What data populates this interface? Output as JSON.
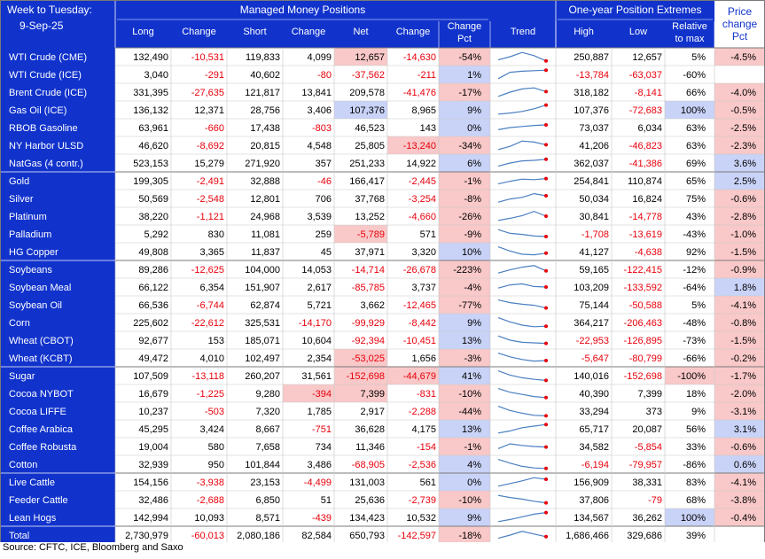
{
  "header": {
    "week_label": "Week to Tuesday:",
    "date": "9-Sep-25",
    "mm_group": "Managed Money Positions",
    "ext_group": "One-year Position Extremes",
    "price_group": [
      "Price",
      "change",
      "Pct"
    ],
    "cols": [
      "Long",
      "Change",
      "Short",
      "Change",
      "Net",
      "Change"
    ],
    "change_pct": [
      "Change",
      "Pct"
    ],
    "trend": "Trend",
    "high": "High",
    "low": "Low",
    "relative": [
      "Relative",
      "to max"
    ]
  },
  "colors": {
    "navy": "#1133cc",
    "red_fill": "#f9c8c8",
    "blue_fill": "#c9d2f7",
    "red_text": "#e8000b",
    "grid": "#c7c7c7",
    "border": "#7a7a7a",
    "sparkline": "#4a7fc1",
    "spark_dot": "#e8000b"
  },
  "rows": [
    {
      "name": "WTI Crude (CME)",
      "long": "132,490",
      "ch1": "-10,531",
      "short": "119,833",
      "ch2": "4,099",
      "net": "12,657",
      "ch3": "-14,630",
      "pct": "-54%",
      "high": "250,887",
      "low": "12,657",
      "rel": "5%",
      "price": "-4.5%",
      "fill": {
        "net": "r",
        "pct": "r",
        "price": "r"
      },
      "trend": [
        0.2,
        0.5,
        0.9,
        0.6,
        0.1
      ]
    },
    {
      "name": "WTI Crude (ICE)",
      "long": "3,040",
      "ch1": "-291",
      "short": "40,602",
      "ch2": "-80",
      "net": "-37,562",
      "ch3": "-211",
      "pct": "1%",
      "high": "-13,784",
      "low": "-63,037",
      "rel": "-60%",
      "price": "",
      "fill": {
        "pct": "b"
      },
      "trend": [
        0.1,
        0.7,
        0.8,
        0.85,
        0.9
      ]
    },
    {
      "name": "Brent Crude (ICE)",
      "long": "331,395",
      "ch1": "-27,635",
      "short": "121,817",
      "ch2": "13,841",
      "net": "209,578",
      "ch3": "-41,476",
      "pct": "-17%",
      "high": "318,182",
      "low": "-8,141",
      "rel": "66%",
      "price": "-4.0%",
      "fill": {
        "pct": "r",
        "price": "r"
      },
      "trend": [
        0.1,
        0.5,
        0.8,
        0.9,
        0.55
      ]
    },
    {
      "name": "Gas Oil (ICE)",
      "long": "136,132",
      "ch1": "12,371",
      "short": "28,756",
      "ch2": "3,406",
      "net": "107,376",
      "ch3": "8,965",
      "pct": "9%",
      "high": "107,376",
      "low": "-72,683",
      "rel": "100%",
      "price": "-0.5%",
      "fill": {
        "net": "b",
        "pct": "b",
        "rel": "b",
        "price": "r"
      },
      "trend": [
        0.1,
        0.2,
        0.35,
        0.6,
        0.95
      ]
    },
    {
      "name": "RBOB Gasoline",
      "long": "63,961",
      "ch1": "-660",
      "short": "17,438",
      "ch2": "-803",
      "net": "46,523",
      "ch3": "143",
      "pct": "0%",
      "high": "73,037",
      "low": "6,034",
      "rel": "63%",
      "price": "-2.5%",
      "fill": {
        "pct": "b",
        "price": "r"
      },
      "trend": [
        0.3,
        0.5,
        0.6,
        0.7,
        0.75
      ]
    },
    {
      "name": "NY Harbor ULSD",
      "long": "46,620",
      "ch1": "-8,692",
      "short": "20,815",
      "ch2": "4,548",
      "net": "25,805",
      "ch3": "-13,240",
      "pct": "-34%",
      "high": "41,206",
      "low": "-46,823",
      "rel": "63%",
      "price": "-2.3%",
      "fill": {
        "ch3": "r",
        "pct": "r",
        "price": "r"
      },
      "trend": [
        0.1,
        0.4,
        0.9,
        0.8,
        0.55
      ]
    },
    {
      "name": "NatGas (4 contr.)",
      "long": "523,153",
      "ch1": "15,279",
      "short": "271,920",
      "ch2": "357",
      "net": "251,233",
      "ch3": "14,922",
      "pct": "6%",
      "high": "362,037",
      "low": "-41,386",
      "rel": "69%",
      "price": "3.6%",
      "fill": {
        "pct": "b",
        "price": "b"
      },
      "trend": [
        0.2,
        0.5,
        0.7,
        0.75,
        0.85
      ]
    },
    {
      "name": "Gold",
      "long": "199,305",
      "ch1": "-2,491",
      "short": "32,888",
      "ch2": "-46",
      "net": "166,417",
      "ch3": "-2,445",
      "pct": "-1%",
      "high": "254,841",
      "low": "110,874",
      "rel": "65%",
      "price": "2.5%",
      "fill": {
        "pct": "r",
        "price": "b"
      },
      "trend": [
        0.2,
        0.45,
        0.65,
        0.6,
        0.7
      ]
    },
    {
      "name": "Silver",
      "long": "50,569",
      "ch1": "-2,548",
      "short": "12,801",
      "ch2": "706",
      "net": "37,768",
      "ch3": "-3,254",
      "pct": "-8%",
      "high": "50,034",
      "low": "16,824",
      "rel": "75%",
      "price": "-0.6%",
      "fill": {
        "pct": "r",
        "price": "r"
      },
      "trend": [
        0.15,
        0.45,
        0.6,
        0.95,
        0.75
      ]
    },
    {
      "name": "Platinum",
      "long": "38,220",
      "ch1": "-1,121",
      "short": "24,968",
      "ch2": "3,539",
      "net": "13,252",
      "ch3": "-4,660",
      "pct": "-26%",
      "high": "30,841",
      "low": "-14,778",
      "rel": "43%",
      "price": "-2.8%",
      "fill": {
        "pct": "r",
        "price": "r"
      },
      "trend": [
        0.1,
        0.3,
        0.55,
        0.95,
        0.5
      ]
    },
    {
      "name": "Palladium",
      "long": "5,292",
      "ch1": "830",
      "short": "11,081",
      "ch2": "259",
      "net": "-5,789",
      "ch3": "571",
      "pct": "-9%",
      "high": "-1,708",
      "low": "-13,619",
      "rel": "-43%",
      "price": "-1.0%",
      "fill": {
        "net": "r",
        "pct": "r",
        "price": "r"
      },
      "trend": [
        0.9,
        0.55,
        0.45,
        0.3,
        0.25
      ]
    },
    {
      "name": "HG Copper",
      "long": "49,808",
      "ch1": "3,365",
      "short": "11,837",
      "ch2": "45",
      "net": "37,971",
      "ch3": "3,320",
      "pct": "10%",
      "high": "41,127",
      "low": "-4,638",
      "rel": "92%",
      "price": "-1.5%",
      "fill": {
        "pct": "b",
        "price": "r"
      },
      "trend": [
        0.95,
        0.55,
        0.25,
        0.2,
        0.35
      ]
    },
    {
      "name": "Soybeans",
      "long": "89,286",
      "ch1": "-12,625",
      "short": "104,000",
      "ch2": "14,053",
      "net": "-14,714",
      "ch3": "-26,678",
      "pct": "-223%",
      "high": "59,165",
      "low": "-122,415",
      "rel": "-12%",
      "price": "-0.9%",
      "fill": {
        "pct": "r",
        "price": "r"
      },
      "trend": [
        0.15,
        0.45,
        0.7,
        0.85,
        0.35
      ]
    },
    {
      "name": "Soybean Meal",
      "long": "66,122",
      "ch1": "6,354",
      "short": "151,907",
      "ch2": "2,617",
      "net": "-85,785",
      "ch3": "3,737",
      "pct": "-4%",
      "high": "103,209",
      "low": "-133,592",
      "rel": "-64%",
      "price": "1.8%",
      "fill": {
        "pct": "r",
        "price": "b"
      },
      "trend": [
        0.4,
        0.7,
        0.8,
        0.55,
        0.5
      ]
    },
    {
      "name": "Soybean Oil",
      "long": "66,536",
      "ch1": "-6,744",
      "short": "62,874",
      "ch2": "5,721",
      "net": "3,662",
      "ch3": "-12,465",
      "pct": "-77%",
      "high": "75,144",
      "low": "-50,588",
      "rel": "5%",
      "price": "-4.1%",
      "fill": {
        "pct": "r",
        "price": "r"
      },
      "trend": [
        0.95,
        0.7,
        0.55,
        0.45,
        0.2
      ]
    },
    {
      "name": "Corn",
      "long": "225,602",
      "ch1": "-22,612",
      "short": "325,531",
      "ch2": "-14,170",
      "net": "-99,929",
      "ch3": "-8,442",
      "pct": "9%",
      "high": "364,217",
      "low": "-206,463",
      "rel": "-48%",
      "price": "-0.8%",
      "fill": {
        "pct": "b",
        "price": "r"
      },
      "trend": [
        0.95,
        0.55,
        0.25,
        0.1,
        0.15
      ]
    },
    {
      "name": "Wheat (CBOT)",
      "long": "92,677",
      "ch1": "153",
      "short": "185,071",
      "ch2": "10,604",
      "net": "-92,394",
      "ch3": "-10,451",
      "pct": "13%",
      "high": "-22,953",
      "low": "-126,895",
      "rel": "-73%",
      "price": "-1.5%",
      "fill": {
        "pct": "b",
        "price": "r"
      },
      "trend": [
        0.9,
        0.5,
        0.3,
        0.25,
        0.2
      ]
    },
    {
      "name": "Wheat (KCBT)",
      "long": "49,472",
      "ch1": "4,010",
      "short": "102,497",
      "ch2": "2,354",
      "net": "-53,025",
      "ch3": "1,656",
      "pct": "-3%",
      "high": "-5,647",
      "low": "-80,799",
      "rel": "-66%",
      "price": "-0.2%",
      "fill": {
        "net": "r",
        "pct": "r",
        "price": "r"
      },
      "trend": [
        0.95,
        0.6,
        0.35,
        0.2,
        0.25
      ]
    },
    {
      "name": "Sugar",
      "long": "107,509",
      "ch1": "-13,118",
      "short": "260,207",
      "ch2": "31,561",
      "net": "-152,698",
      "ch3": "-44,679",
      "pct": "41%",
      "high": "140,016",
      "low": "-152,698",
      "rel": "-100%",
      "price": "-1.7%",
      "fill": {
        "net": "r",
        "ch3": "r",
        "pct": "b",
        "rel": "r",
        "price": "r"
      },
      "trend": [
        0.95,
        0.55,
        0.3,
        0.15,
        0.05
      ]
    },
    {
      "name": "Cocoa NYBOT",
      "long": "16,679",
      "ch1": "-1,225",
      "short": "9,280",
      "ch2": "-394",
      "net": "7,399",
      "ch3": "-831",
      "pct": "-10%",
      "high": "40,390",
      "low": "7,399",
      "rel": "18%",
      "price": "-2.0%",
      "fill": {
        "ch2": "r",
        "net": "r",
        "pct": "r",
        "price": "r"
      },
      "trend": [
        0.95,
        0.6,
        0.4,
        0.2,
        0.1
      ]
    },
    {
      "name": "Cocoa LIFFE",
      "long": "10,237",
      "ch1": "-503",
      "short": "7,320",
      "ch2": "1,785",
      "net": "2,917",
      "ch3": "-2,288",
      "pct": "-44%",
      "high": "33,294",
      "low": "373",
      "rel": "9%",
      "price": "-3.1%",
      "fill": {
        "pct": "r",
        "price": "r"
      },
      "trend": [
        0.95,
        0.55,
        0.3,
        0.1,
        0.05
      ]
    },
    {
      "name": "Coffee Arabica",
      "long": "45,295",
      "ch1": "3,424",
      "short": "8,667",
      "ch2": "-751",
      "net": "36,628",
      "ch3": "4,175",
      "pct": "13%",
      "high": "65,717",
      "low": "20,087",
      "rel": "56%",
      "price": "3.1%",
      "fill": {
        "pct": "b",
        "price": "b"
      },
      "trend": [
        0.1,
        0.3,
        0.6,
        0.75,
        0.9
      ]
    },
    {
      "name": "Coffee Robusta",
      "long": "19,004",
      "ch1": "580",
      "short": "7,658",
      "ch2": "734",
      "net": "11,346",
      "ch3": "-154",
      "pct": "-1%",
      "high": "34,582",
      "low": "-5,854",
      "rel": "33%",
      "price": "-0.6%",
      "fill": {
        "pct": "r",
        "price": "r"
      },
      "trend": [
        0.3,
        0.75,
        0.6,
        0.5,
        0.45
      ]
    },
    {
      "name": "Cotton",
      "long": "32,939",
      "ch1": "950",
      "short": "101,844",
      "ch2": "3,486",
      "net": "-68,905",
      "ch3": "-2,536",
      "pct": "4%",
      "high": "-6,194",
      "low": "-79,957",
      "rel": "-86%",
      "price": "0.6%",
      "fill": {
        "pct": "b",
        "price": "b"
      },
      "trend": [
        0.95,
        0.6,
        0.3,
        0.15,
        0.1
      ]
    },
    {
      "name": "Live Cattle",
      "long": "154,156",
      "ch1": "-3,938",
      "short": "23,153",
      "ch2": "-4,499",
      "net": "131,003",
      "ch3": "561",
      "pct": "0%",
      "high": "156,909",
      "low": "38,331",
      "rel": "83%",
      "price": "-4.1%",
      "fill": {
        "pct": "b",
        "price": "r"
      },
      "trend": [
        0.1,
        0.35,
        0.6,
        0.9,
        0.75
      ]
    },
    {
      "name": "Feeder Cattle",
      "long": "32,486",
      "ch1": "-2,688",
      "short": "6,850",
      "ch2": "51",
      "net": "25,636",
      "ch3": "-2,739",
      "pct": "-10%",
      "high": "37,806",
      "low": "-79",
      "rel": "68%",
      "price": "-3.8%",
      "fill": {
        "pct": "r",
        "price": "r"
      },
      "trend": [
        0.9,
        0.7,
        0.55,
        0.35,
        0.2
      ]
    },
    {
      "name": "Lean Hogs",
      "long": "142,994",
      "ch1": "10,093",
      "short": "8,571",
      "ch2": "-439",
      "net": "134,423",
      "ch3": "10,532",
      "pct": "9%",
      "high": "134,567",
      "low": "36,262",
      "rel": "100%",
      "price": "-0.4%",
      "fill": {
        "pct": "b",
        "rel": "b",
        "price": "r"
      },
      "trend": [
        0.1,
        0.3,
        0.55,
        0.8,
        0.95
      ]
    },
    {
      "name": "Total",
      "long": "2,730,979",
      "ch1": "-60,013",
      "short": "2,080,186",
      "ch2": "82,584",
      "net": "650,793",
      "ch3": "-142,597",
      "pct": "-18%",
      "high": "1,686,466",
      "low": "329,686",
      "rel": "39%",
      "price": "",
      "fill": {
        "pct": "r"
      },
      "trend": [
        0.2,
        0.5,
        0.85,
        0.6,
        0.35
      ]
    }
  ],
  "source": "Source: CFTC, ICE, Bloomberg and Saxo"
}
